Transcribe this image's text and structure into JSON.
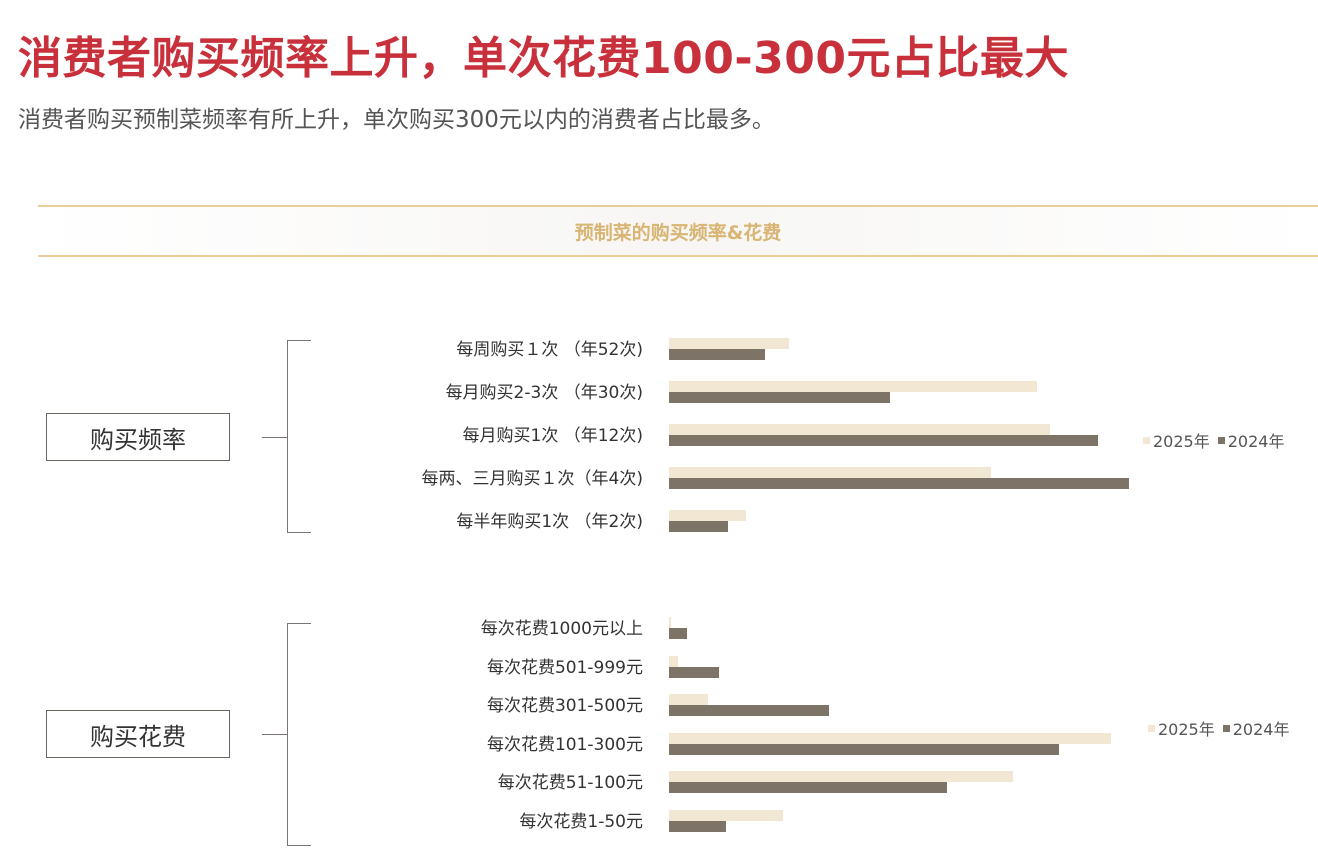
{
  "header": {
    "title": "消费者购买频率上升，单次花费100-300元占比最大",
    "subtitle": "消费者购买预制菜频率有所上升，单次购买300元以内的消费者占比最多。"
  },
  "banner": {
    "title": "预制菜的购买频率&花费"
  },
  "colors": {
    "title_red": "#c8303b",
    "gold": "#d9b574",
    "series_2025": "#f1e7d3",
    "series_2024": "#7d7367"
  },
  "chart_data": [
    {
      "type": "bar",
      "orientation": "horizontal",
      "title": "购买频率",
      "categories": [
        "每周购买１次 （年52次)",
        "每月购买2-3次 （年30次)",
        "每月购买1次 （年12次)",
        "每两、三月购买１次（年4次)",
        "每半年购买1次 （年2次)"
      ],
      "series": [
        {
          "name": "2025年",
          "values": [
            5.5,
            16.8,
            17.4,
            14.7,
            3.5
          ]
        },
        {
          "name": "2024年",
          "values": [
            4.4,
            10.1,
            19.6,
            21.0,
            2.7
          ]
        }
      ],
      "legend": [
        "2025年",
        "2024年"
      ],
      "legend_position": "right",
      "xlim": [
        0,
        21
      ],
      "grid": false
    },
    {
      "type": "bar",
      "orientation": "horizontal",
      "title": "购买花费",
      "categories": [
        "每次花费1000元以上",
        "每次花费501-999元",
        "每次花费301-500元",
        "每次花费101-300元",
        "每次花费51-100元",
        "每次花费1-50元"
      ],
      "series": [
        {
          "name": "2025年",
          "values": [
            0.1,
            0.4,
            1.8,
            20.2,
            15.7,
            5.2
          ]
        },
        {
          "name": "2024年",
          "values": [
            0.8,
            2.3,
            7.3,
            17.8,
            12.7,
            2.6
          ]
        }
      ],
      "legend": [
        "2025年",
        "2024年"
      ],
      "legend_position": "right",
      "xlim": [
        0,
        21
      ],
      "grid": false
    }
  ]
}
